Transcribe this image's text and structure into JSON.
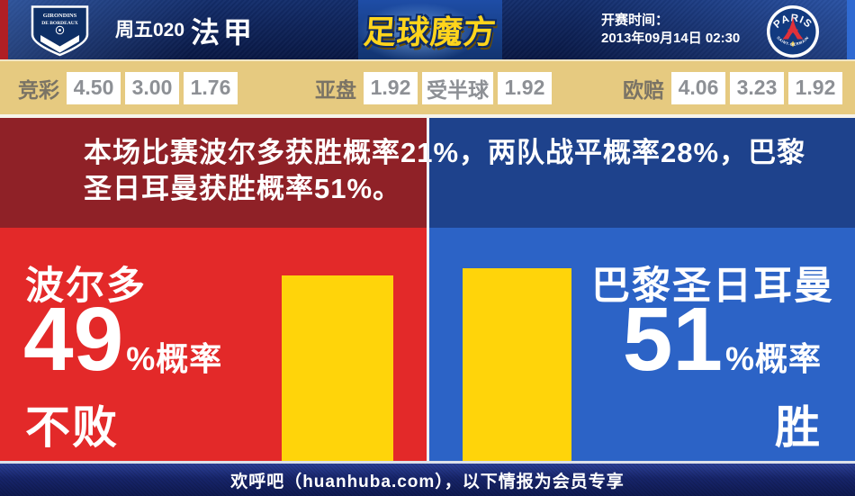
{
  "header": {
    "match_code": "周五020",
    "league": "法甲",
    "brand": "足球魔方",
    "kickoff_label": "开赛时间：",
    "kickoff_time": "2013年09月14日 02:30",
    "home_crest": {
      "line1": "GIRONDINS",
      "line2": "DE BORDEAUX"
    },
    "away_crest": {
      "top": "PARIS",
      "bottom": "SAINT-GERMAIN"
    }
  },
  "odds": {
    "groups": [
      {
        "label": "竞彩",
        "values": [
          "4.50",
          "3.00",
          "1.76"
        ]
      },
      {
        "label": "亚盘",
        "values": [
          "1.92",
          "受半球",
          "1.92"
        ]
      },
      {
        "label": "欧赔",
        "values": [
          "4.06",
          "3.23",
          "1.92"
        ]
      }
    ]
  },
  "banner": {
    "line1": "本场比赛波尔多获胜概率21%，两队战平概率28%，巴黎",
    "line2": "圣日耳曼获胜概率51%。",
    "home_win_pct": 21,
    "draw_pct": 28,
    "away_win_pct": 51
  },
  "home_panel": {
    "team": "波尔多",
    "value": "49",
    "unit": "%概率",
    "outcome": "不败"
  },
  "away_panel": {
    "team": "巴黎圣日耳曼",
    "value": "51",
    "unit": "%概率",
    "outcome": "胜"
  },
  "chart_data": {
    "type": "bar",
    "categories": [
      "波尔多 不败",
      "巴黎圣日耳曼 胜"
    ],
    "values": [
      49,
      51
    ],
    "unit": "%",
    "bar_color": "#ffd40a",
    "legend_position": "none",
    "grid": false
  },
  "footer": {
    "text": "欢呼吧（huanhuba.com），以下情报为会员专享"
  },
  "colors": {
    "accent-red": "#b01f24",
    "accent-blue": "#2f6ad2",
    "header-navy-1": "#1d4392",
    "header-navy-2": "#0d2257",
    "cream": "#f0e5c4",
    "odds-bg": "#e6ca80",
    "odds-label": "#7a7365",
    "odds-value": "#8d9095",
    "line-white": "#f6f3ea",
    "banner-red": "#8f2127",
    "banner-blue": "#1e428c",
    "panel-red": "#e32929",
    "panel-blue": "#2c63c6",
    "bar-yellow": "#ffd40a"
  }
}
